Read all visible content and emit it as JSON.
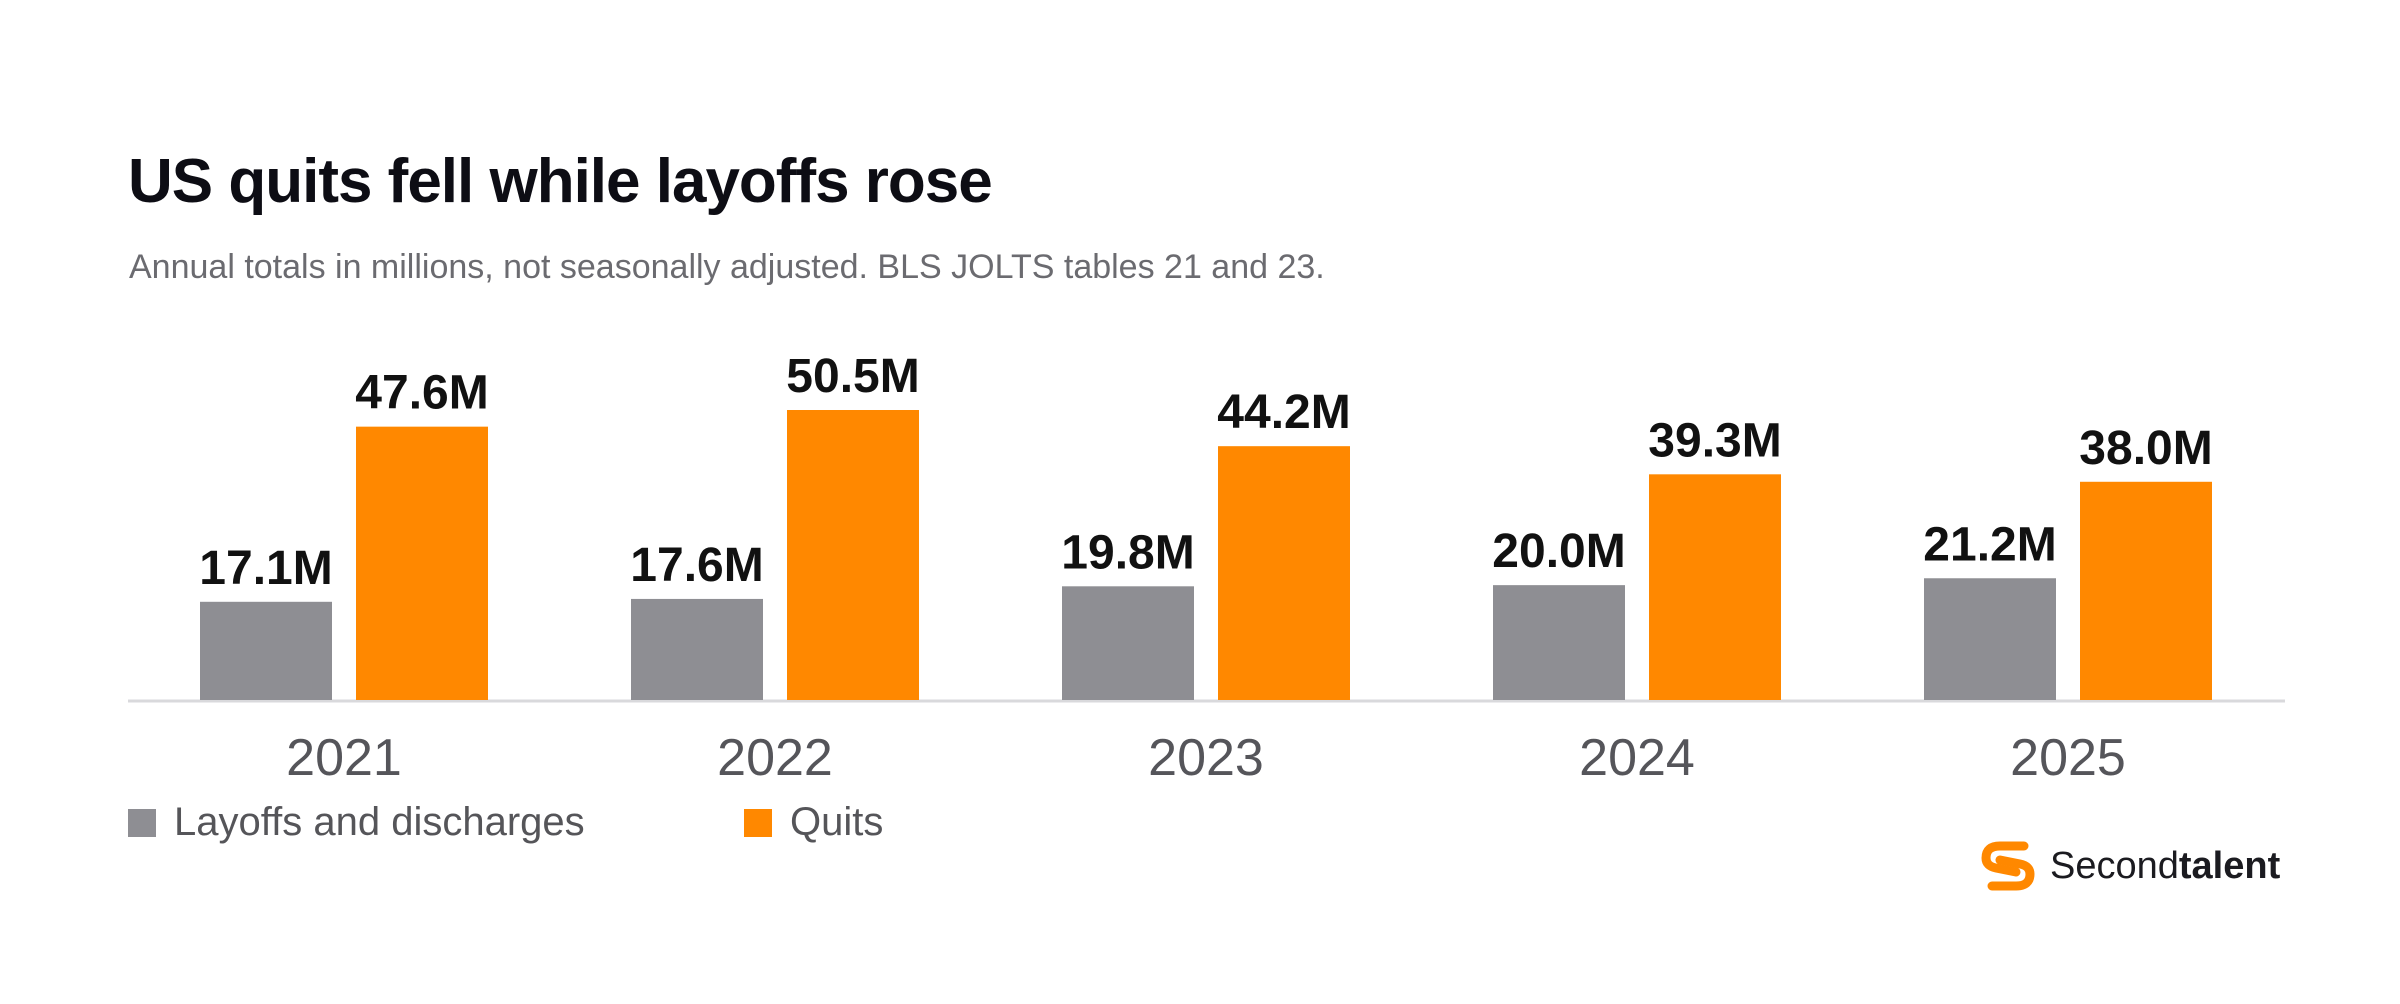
{
  "title": "US quits fell while layoffs rose",
  "subtitle": "Annual totals in millions, not seasonally adjusted. BLS JOLTS tables 21 and 23.",
  "colors": {
    "layoffs": "#8e8e93",
    "quits": "#ff8800",
    "axis": "#d9d9dc",
    "label": "#111111",
    "tick": "#55555a"
  },
  "legend": [
    {
      "label": "Layoffs and discharges",
      "color": "#8e8e93"
    },
    {
      "label": "Quits",
      "color": "#ff8800"
    }
  ],
  "logo": {
    "light": "Second",
    "bold": "talent",
    "icon": "secondtalent-logo-icon"
  },
  "chart_data": {
    "type": "bar",
    "categories": [
      "2021",
      "2022",
      "2023",
      "2024",
      "2025"
    ],
    "series": [
      {
        "name": "Layoffs and discharges",
        "values": [
          17.1,
          17.6,
          19.8,
          20.0,
          21.2
        ],
        "labels": [
          "17.1M",
          "17.6M",
          "19.8M",
          "20.0M",
          "21.2M"
        ]
      },
      {
        "name": "Quits",
        "values": [
          47.6,
          50.5,
          44.2,
          39.3,
          38.0
        ],
        "labels": [
          "47.6M",
          "50.5M",
          "44.2M",
          "39.3M",
          "38.0M"
        ]
      }
    ],
    "ylim": [
      0,
      50.5
    ],
    "grid": false,
    "legend_position": "bottom-left"
  }
}
